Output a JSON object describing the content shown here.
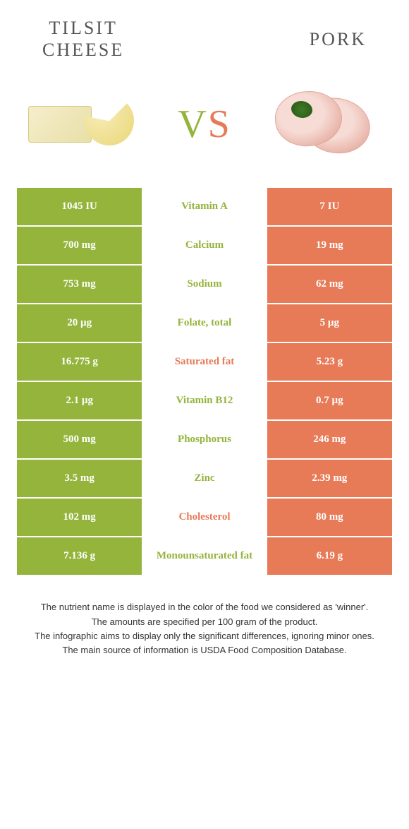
{
  "colors": {
    "left": "#94b43c",
    "right": "#e77a57",
    "mid_left_text": "#94b43c",
    "mid_right_text": "#e77a57",
    "vs_v": "#94b43c",
    "vs_s": "#e77a57"
  },
  "header": {
    "left_title": "TILSIT CHEESE",
    "right_title": "PORK"
  },
  "vs": {
    "v": "V",
    "s": "S"
  },
  "rows": [
    {
      "label": "Vitamin A",
      "left": "1045 IU",
      "right": "7 IU",
      "winner": "left"
    },
    {
      "label": "Calcium",
      "left": "700 mg",
      "right": "19 mg",
      "winner": "left"
    },
    {
      "label": "Sodium",
      "left": "753 mg",
      "right": "62 mg",
      "winner": "left"
    },
    {
      "label": "Folate, total",
      "left": "20 µg",
      "right": "5 µg",
      "winner": "left"
    },
    {
      "label": "Saturated fat",
      "left": "16.775 g",
      "right": "5.23 g",
      "winner": "right"
    },
    {
      "label": "Vitamin B12",
      "left": "2.1 µg",
      "right": "0.7 µg",
      "winner": "left"
    },
    {
      "label": "Phosphorus",
      "left": "500 mg",
      "right": "246 mg",
      "winner": "left"
    },
    {
      "label": "Zinc",
      "left": "3.5 mg",
      "right": "2.39 mg",
      "winner": "left"
    },
    {
      "label": "Cholesterol",
      "left": "102 mg",
      "right": "80 mg",
      "winner": "right"
    },
    {
      "label": "Monounsaturated fat",
      "left": "7.136 g",
      "right": "6.19 g",
      "winner": "left"
    }
  ],
  "footer": {
    "l1": "The nutrient name is displayed in the color of the food we considered as 'winner'.",
    "l2": "The amounts are specified per 100 gram of the product.",
    "l3": "The infographic aims to display only the significant differences, ignoring minor ones.",
    "l4": "The main source of information is USDA Food Composition Database."
  }
}
